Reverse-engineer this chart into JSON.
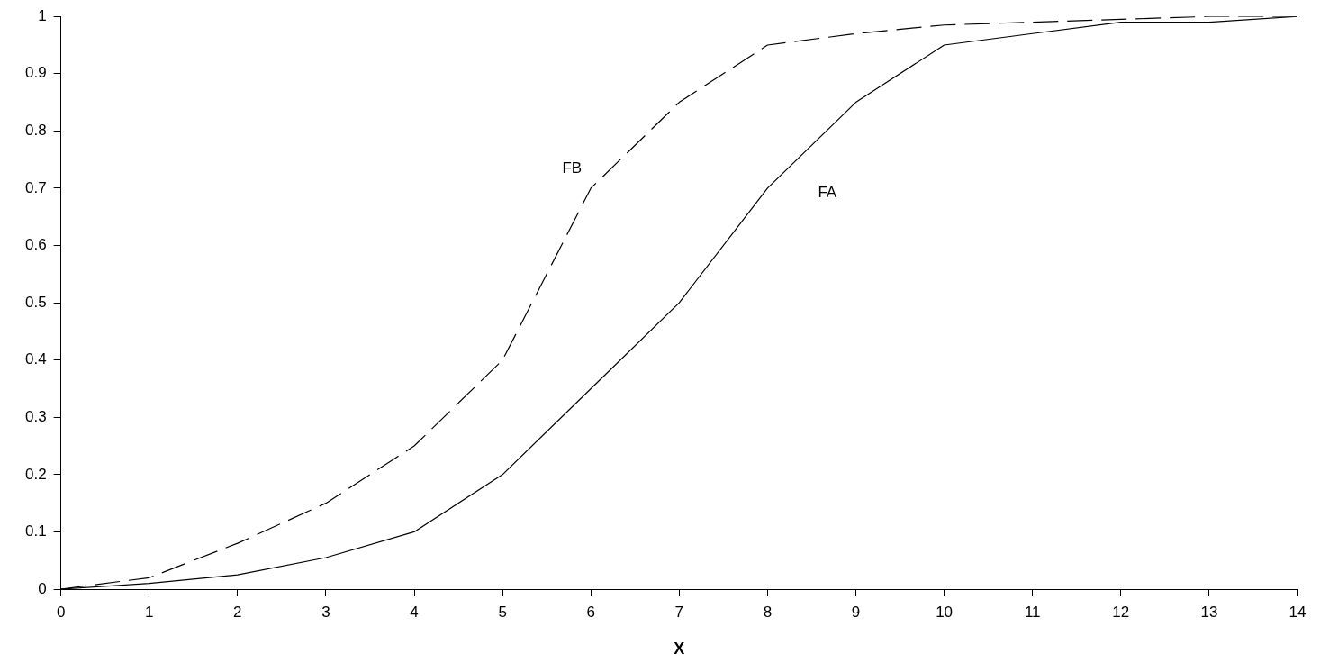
{
  "chart_data": {
    "type": "line",
    "xlabel": "X",
    "x": [
      0,
      1,
      2,
      3,
      4,
      5,
      6,
      7,
      8,
      9,
      10,
      11,
      12,
      13,
      14
    ],
    "series": [
      {
        "name": "FA",
        "color": "#000000",
        "line_style": "solid",
        "values": [
          0,
          0.01,
          0.025,
          0.055,
          0.1,
          0.2,
          0.35,
          0.5,
          0.7,
          0.85,
          0.95,
          0.97,
          0.99,
          0.99,
          1
        ]
      },
      {
        "name": "FB",
        "color": "#000000",
        "line_style": "dashed",
        "values": [
          0,
          0.02,
          0.08,
          0.15,
          0.25,
          0.4,
          0.7,
          0.85,
          0.95,
          0.97,
          0.985,
          0.99,
          0.995,
          1,
          1
        ]
      }
    ],
    "xlim": [
      0,
      14
    ],
    "xticks": [
      0,
      1,
      2,
      3,
      4,
      5,
      6,
      7,
      8,
      9,
      10,
      11,
      12,
      13,
      14
    ],
    "ylim": [
      0,
      1
    ],
    "yticks": [
      0,
      0.1,
      0.2,
      0.3,
      0.4,
      0.5,
      0.6,
      0.7,
      0.8,
      0.9,
      1
    ],
    "grid": false,
    "legend": false,
    "marker": "none"
  }
}
